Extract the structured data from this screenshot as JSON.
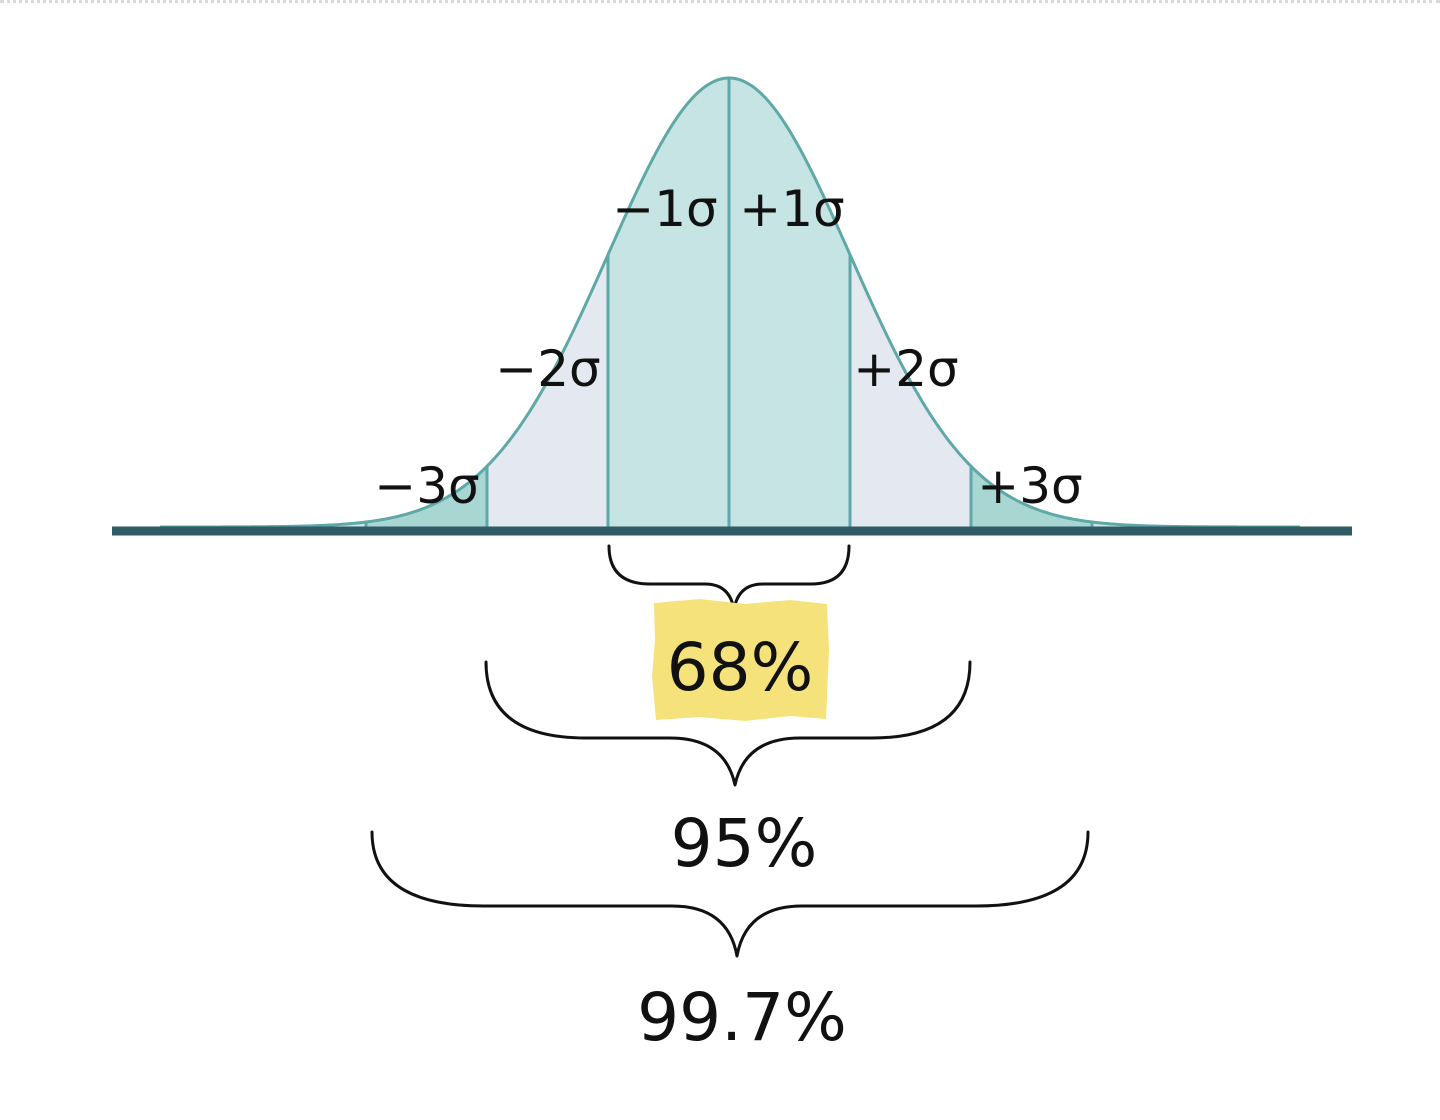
{
  "diagram": {
    "sigma_labels": {
      "minus3": "−3σ",
      "minus2": "−2σ",
      "minus1": "−1σ",
      "plus1": "+1σ",
      "plus2": "+2σ",
      "plus3": "+3σ"
    },
    "percentages": {
      "one_sigma": "68%",
      "two_sigma": "95%",
      "three_sigma": "99.7%"
    },
    "colors": {
      "curve_outline": "#5fa8a8",
      "one_sigma_band": "#c6e4e3",
      "two_sigma_band": "#e4e9f1",
      "three_sigma_band": "#a7d6d3",
      "tail_band": "#cbe6e5",
      "baseline": "#2f5b66",
      "highlight": "#f6e27a"
    }
  }
}
